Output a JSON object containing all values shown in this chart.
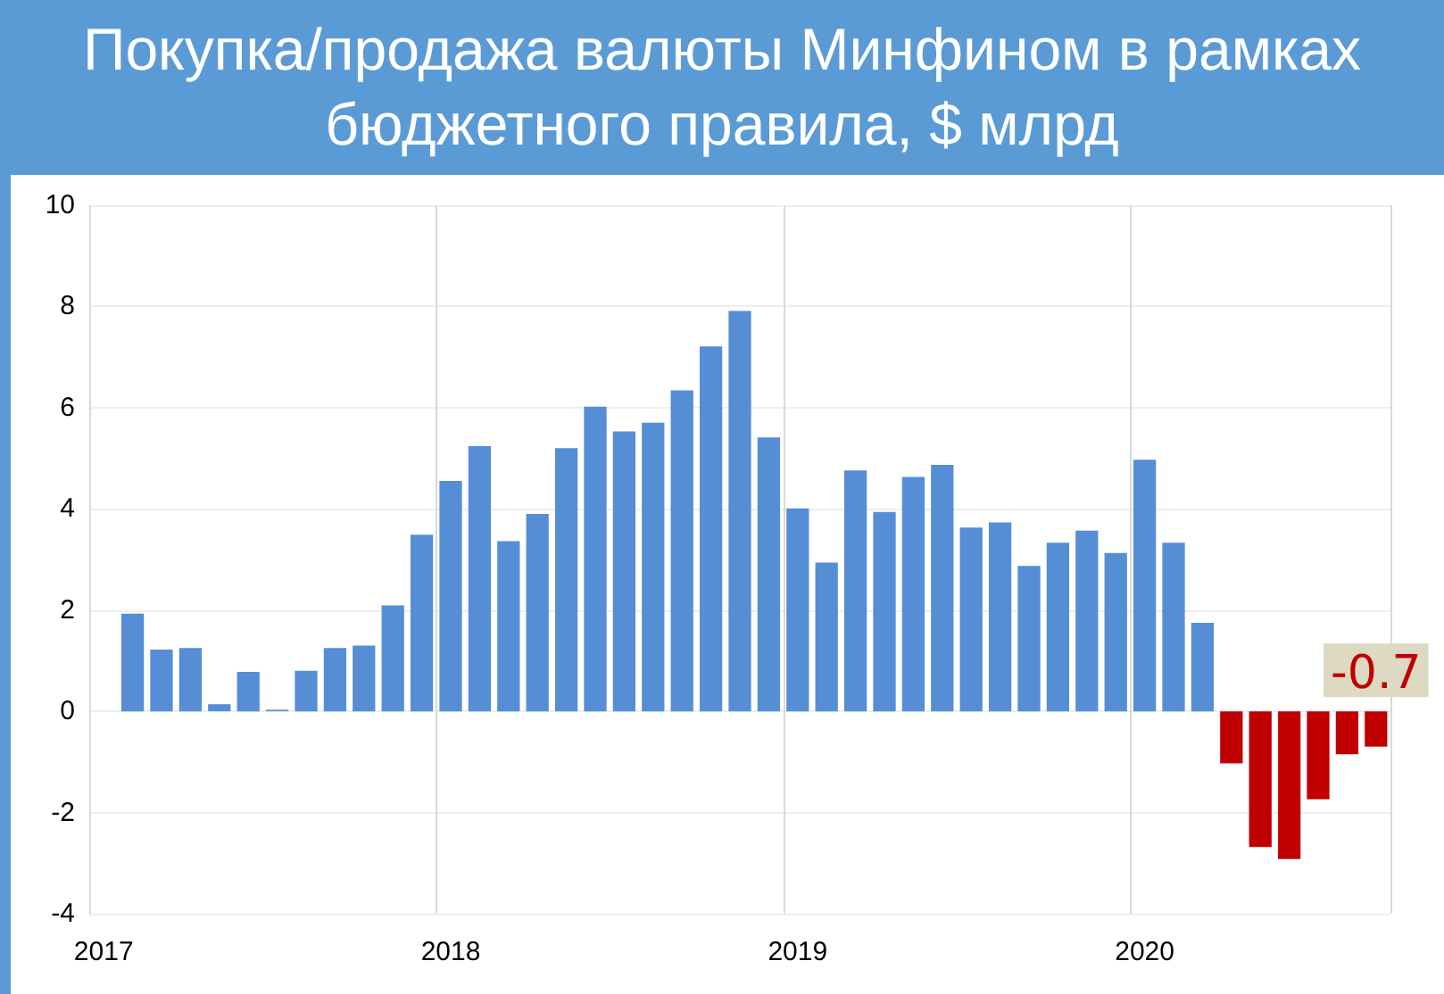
{
  "chart_data": {
    "type": "bar",
    "title": "Покупка/продажа валюты Минфином в рамках бюджетного правила, $ млрд",
    "categories": [
      "2017",
      null,
      null,
      null,
      null,
      null,
      null,
      null,
      null,
      null,
      null,
      null,
      "2018",
      null,
      null,
      null,
      null,
      null,
      null,
      null,
      null,
      null,
      null,
      null,
      "2019",
      null,
      null,
      null,
      null,
      null,
      null,
      null,
      null,
      null,
      null,
      null,
      "2020",
      null,
      null,
      null,
      null,
      null,
      null,
      null,
      null
    ],
    "values": [
      null,
      1.93,
      1.22,
      1.25,
      0.14,
      0.78,
      0.03,
      0.8,
      1.25,
      1.3,
      2.09,
      3.49,
      4.55,
      5.24,
      3.36,
      3.9,
      5.2,
      6.02,
      5.53,
      5.7,
      6.34,
      7.21,
      7.91,
      5.41,
      4.01,
      2.94,
      4.76,
      3.94,
      4.63,
      4.87,
      3.63,
      3.73,
      2.87,
      3.33,
      3.57,
      3.13,
      4.97,
      3.33,
      1.75,
      -1.03,
      -2.68,
      -2.92,
      -1.74,
      -0.85,
      -0.7
    ],
    "colors": [
      "#558ed5",
      "#558ed5",
      "#558ed5",
      "#558ed5",
      "#558ed5",
      "#558ed5",
      "#558ed5",
      "#558ed5",
      "#558ed5",
      "#558ed5",
      "#558ed5",
      "#558ed5",
      "#558ed5",
      "#558ed5",
      "#558ed5",
      "#558ed5",
      "#558ed5",
      "#558ed5",
      "#558ed5",
      "#558ed5",
      "#558ed5",
      "#558ed5",
      "#558ed5",
      "#558ed5",
      "#558ed5",
      "#558ed5",
      "#558ed5",
      "#558ed5",
      "#558ed5",
      "#558ed5",
      "#558ed5",
      "#558ed5",
      "#558ed5",
      "#558ed5",
      "#558ed5",
      "#558ed5",
      "#558ed5",
      "#558ed5",
      "#558ed5",
      "#c00000",
      "#c00000",
      "#c00000",
      "#c00000",
      "#c00000",
      "#c00000"
    ],
    "value_labels": [
      null,
      null,
      null,
      null,
      null,
      null,
      null,
      null,
      null,
      null,
      null,
      null,
      null,
      null,
      null,
      null,
      null,
      null,
      null,
      null,
      null,
      null,
      null,
      null,
      null,
      null,
      null,
      null,
      null,
      null,
      null,
      null,
      null,
      null,
      null,
      null,
      null,
      null,
      null,
      null,
      null,
      null,
      null,
      null,
      "-0.7"
    ],
    "ylim": [
      -4,
      10
    ],
    "yticks": [
      -4,
      -2,
      0,
      2,
      4,
      6,
      8,
      10
    ],
    "grid": true
  }
}
